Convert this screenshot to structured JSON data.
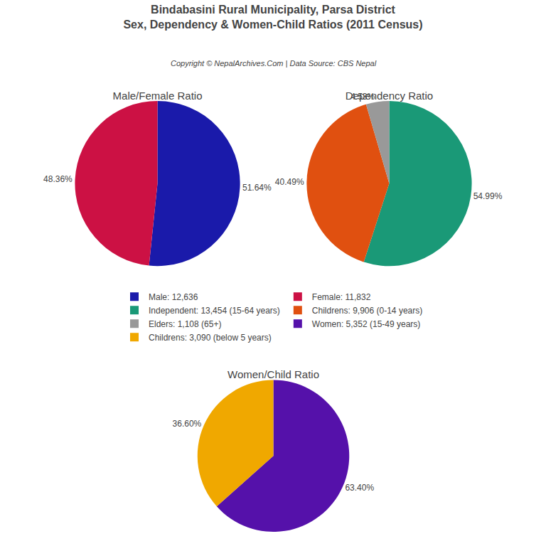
{
  "title": "Bindabasini Rural Municipality, Parsa District",
  "subtitle": "Sex, Dependency & Women-Child Ratios (2011 Census)",
  "annotations": [
    "Copyright © NepalArchives.Com | Data Source: CBS Nepal"
  ],
  "chart_data": [
    {
      "type": "pie",
      "title": "Male/Female Ratio",
      "categories": [
        "Male: 12,636",
        "Female: 11,832"
      ],
      "values": [
        51.64,
        48.36
      ],
      "value_labels": [
        "51.64%",
        "48.36%"
      ],
      "colors": [
        "#1a1aaa",
        "#cc1144"
      ],
      "data_labels": true
    },
    {
      "type": "pie",
      "title": "Dependency Ratio",
      "categories": [
        "Independent: 13,454 (15-64 years)",
        "Childrens: 9,906 (0-14 years)",
        "Elders: 1,108 (65+)"
      ],
      "values": [
        54.99,
        40.49,
        4.53
      ],
      "value_labels": [
        "54.99%",
        "40.49%",
        "4.53%"
      ],
      "colors": [
        "#1a9977",
        "#e05010",
        "#999999"
      ],
      "data_labels": true
    },
    {
      "type": "pie",
      "title": "Women/Child Ratio",
      "categories": [
        "Women: 5,352 (15-49 years)",
        "Childrens: 3,090 (below 5 years)"
      ],
      "values": [
        63.4,
        36.6
      ],
      "value_labels": [
        "63.40%",
        "36.60%"
      ],
      "colors": [
        "#5511aa",
        "#f0a800"
      ],
      "data_labels": true
    }
  ]
}
